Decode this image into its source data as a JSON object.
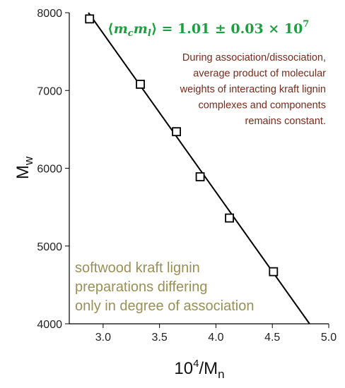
{
  "chart_data": {
    "type": "scatter",
    "x": [
      2.88,
      3.33,
      3.65,
      3.86,
      4.12,
      4.51
    ],
    "y": [
      7920,
      7080,
      6470,
      5890,
      5360,
      4670
    ],
    "fit_line": {
      "x": [
        2.87,
        4.83
      ],
      "y": [
        8000,
        4000
      ]
    },
    "xlabel": {
      "base": "10",
      "exp": "4",
      "slash": "/M",
      "sub": "n"
    },
    "ylabel": {
      "base": "M",
      "sub": "w"
    },
    "xlim": [
      2.7,
      5.0
    ],
    "ylim": [
      4000,
      8000
    ],
    "xticks": [
      "3.0",
      "3.5",
      "4.0",
      "4.5",
      "5.0"
    ],
    "yticks": [
      "4000",
      "5000",
      "6000",
      "7000",
      "8000"
    ],
    "xtick_values": [
      3.0,
      3.5,
      4.0,
      4.5,
      5.0
    ],
    "ytick_values": [
      4000,
      5000,
      6000,
      7000,
      8000
    ],
    "grid": false,
    "legend": "none",
    "annotations": {
      "formula": {
        "lhs_left": "⟨",
        "m1": "m",
        "s1": "c",
        "m2": "m",
        "s2": "l",
        "lhs_right": "⟩",
        "rhs": "= 1.01 ± 0.03 × 10",
        "exp": "7"
      },
      "note": [
        "During association/dissociation,",
        "average product of molecular",
        "weights of interacting kraft lignin",
        "complexes and components",
        "remains constant."
      ],
      "sample": [
        "softwood kraft lignin",
        "preparations differing",
        "only in degree of association"
      ]
    },
    "colors": {
      "formula": "#1f9e3f",
      "note": "#7a2a1a",
      "sample": "#9a8f55",
      "marker": "#000000",
      "line": "#000000"
    }
  }
}
